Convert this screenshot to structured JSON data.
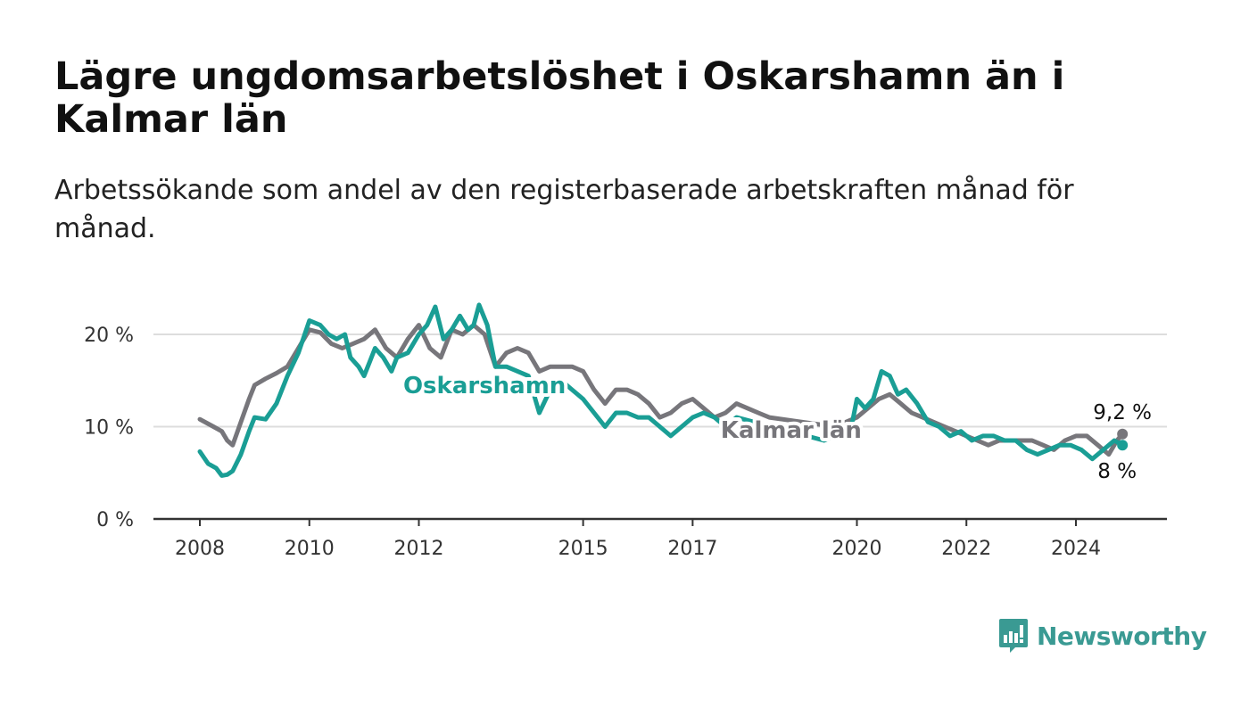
{
  "title": "Lägre ungdomsarbetslöshet i Oskarshamn än i Kalmar län",
  "subtitle": "Arbetssökande som andel av den registerbaserade arbetskraften månad för månad.",
  "brand": {
    "name": "Newsworthy",
    "color": "#3a9a93"
  },
  "chart_data": {
    "type": "line",
    "title": "Lägre ungdomsarbetslöshet i Oskarshamn än i Kalmar län",
    "subtitle": "Arbetssökande som andel av den registerbaserade arbetskraften månad för månad.",
    "xlabel": "",
    "ylabel": "",
    "ylim": [
      0,
      22
    ],
    "yticks": [
      0,
      10,
      20
    ],
    "ytick_labels": [
      "0 %",
      "10 %",
      "20 %"
    ],
    "xticks": [
      2008,
      2010,
      2012,
      2015,
      2017,
      2020,
      2022,
      2024
    ],
    "grid": true,
    "legend": "inline labels",
    "end_labels": {
      "Kalmar län": "9,2 %",
      "Oskarshamn": "8 %"
    },
    "series": [
      {
        "name": "Kalmar län",
        "color": "#77767b",
        "x": [
          2008.0,
          2008.25,
          2008.4,
          2008.5,
          2008.6,
          2008.75,
          2008.9,
          2009.0,
          2009.2,
          2009.4,
          2009.6,
          2009.8,
          2010.0,
          2010.2,
          2010.4,
          2010.6,
          2010.8,
          2011.0,
          2011.2,
          2011.4,
          2011.6,
          2011.8,
          2012.0,
          2012.2,
          2012.4,
          2012.6,
          2012.8,
          2013.0,
          2013.2,
          2013.4,
          2013.6,
          2013.8,
          2014.0,
          2014.2,
          2014.4,
          2014.6,
          2014.8,
          2015.0,
          2015.2,
          2015.4,
          2015.6,
          2015.8,
          2016.0,
          2016.2,
          2016.4,
          2016.6,
          2016.8,
          2017.0,
          2017.2,
          2017.4,
          2017.6,
          2017.8,
          2018.0,
          2018.2,
          2018.4,
          2019.6,
          2019.8,
          2020.0,
          2020.2,
          2020.4,
          2020.6,
          2020.8,
          2021.0,
          2021.2,
          2021.4,
          2021.6,
          2021.8,
          2022.0,
          2022.2,
          2022.4,
          2022.6,
          2022.8,
          2023.0,
          2023.2,
          2023.4,
          2023.6,
          2023.8,
          2024.0,
          2024.2,
          2024.4,
          2024.6,
          2024.75,
          2024.85
        ],
        "y": [
          10.8,
          10.0,
          9.5,
          8.5,
          8.0,
          10.5,
          13.0,
          14.5,
          15.2,
          15.8,
          16.5,
          18.5,
          20.5,
          20.2,
          19.0,
          18.5,
          19.0,
          19.5,
          20.5,
          18.5,
          17.5,
          19.5,
          21.0,
          18.5,
          17.5,
          20.5,
          20.0,
          21.0,
          20.0,
          16.5,
          18.0,
          18.5,
          18.0,
          16.0,
          16.5,
          16.5,
          16.5,
          16.0,
          14.0,
          12.5,
          14.0,
          14.0,
          13.5,
          12.5,
          11.0,
          11.5,
          12.5,
          13.0,
          12.0,
          11.0,
          11.5,
          12.5,
          12.0,
          11.5,
          11.0,
          10.0,
          10.5,
          11.0,
          12.0,
          13.0,
          13.5,
          12.5,
          11.5,
          11.0,
          10.5,
          10.0,
          9.5,
          9.0,
          8.5,
          8.0,
          8.5,
          8.5,
          8.5,
          8.5,
          8.0,
          7.5,
          8.5,
          9.0,
          9.0,
          8.0,
          7.0,
          8.5,
          9.2
        ]
      },
      {
        "name": "Oskarshamn",
        "color": "#1a9e95",
        "x": [
          2008.0,
          2008.15,
          2008.3,
          2008.4,
          2008.5,
          2008.6,
          2008.75,
          2008.9,
          2009.0,
          2009.2,
          2009.4,
          2009.6,
          2009.8,
          2010.0,
          2010.2,
          2010.35,
          2010.5,
          2010.65,
          2010.75,
          2010.9,
          2011.0,
          2011.1,
          2011.2,
          2011.35,
          2011.5,
          2011.6,
          2011.8,
          2012.0,
          2012.15,
          2012.3,
          2012.45,
          2012.6,
          2012.75,
          2012.9,
          2013.0,
          2013.1,
          2013.25,
          2013.4,
          2013.6,
          2014.0,
          2014.2,
          2014.4,
          2014.6,
          2014.8,
          2015.0,
          2015.2,
          2015.4,
          2015.6,
          2015.8,
          2016.0,
          2016.2,
          2016.4,
          2016.6,
          2016.8,
          2017.0,
          2017.2,
          2017.4,
          2017.6,
          2017.8,
          2019.4,
          2019.6,
          2019.8,
          2019.9,
          2020.0,
          2020.15,
          2020.3,
          2020.45,
          2020.6,
          2020.75,
          2020.9,
          2021.1,
          2021.3,
          2021.5,
          2021.7,
          2021.9,
          2022.1,
          2022.3,
          2022.5,
          2022.7,
          2022.9,
          2023.1,
          2023.3,
          2023.5,
          2023.7,
          2023.9,
          2024.1,
          2024.3,
          2024.5,
          2024.7,
          2024.85
        ],
        "y": [
          7.3,
          6.0,
          5.5,
          4.7,
          4.8,
          5.2,
          7.0,
          9.5,
          11.0,
          10.8,
          12.5,
          15.5,
          18.0,
          21.5,
          21.0,
          20.0,
          19.5,
          20.0,
          17.5,
          16.5,
          15.5,
          17.0,
          18.5,
          17.5,
          16.0,
          17.5,
          18.0,
          20.0,
          21.0,
          23.0,
          19.5,
          20.5,
          22.0,
          20.5,
          21.0,
          23.2,
          21.0,
          16.5,
          16.5,
          15.5,
          11.5,
          14.0,
          15.0,
          14.0,
          13.0,
          11.5,
          10.0,
          11.5,
          11.5,
          11.0,
          11.0,
          10.0,
          9.0,
          10.0,
          11.0,
          11.5,
          11.0,
          10.0,
          11.0,
          8.5,
          9.0,
          9.5,
          10.0,
          13.0,
          12.0,
          13.0,
          16.0,
          15.5,
          13.5,
          14.0,
          12.5,
          10.5,
          10.0,
          9.0,
          9.5,
          8.5,
          9.0,
          9.0,
          8.5,
          8.5,
          7.5,
          7.0,
          7.5,
          8.0,
          8.0,
          7.5,
          6.5,
          7.5,
          8.5,
          8.0
        ]
      }
    ]
  }
}
